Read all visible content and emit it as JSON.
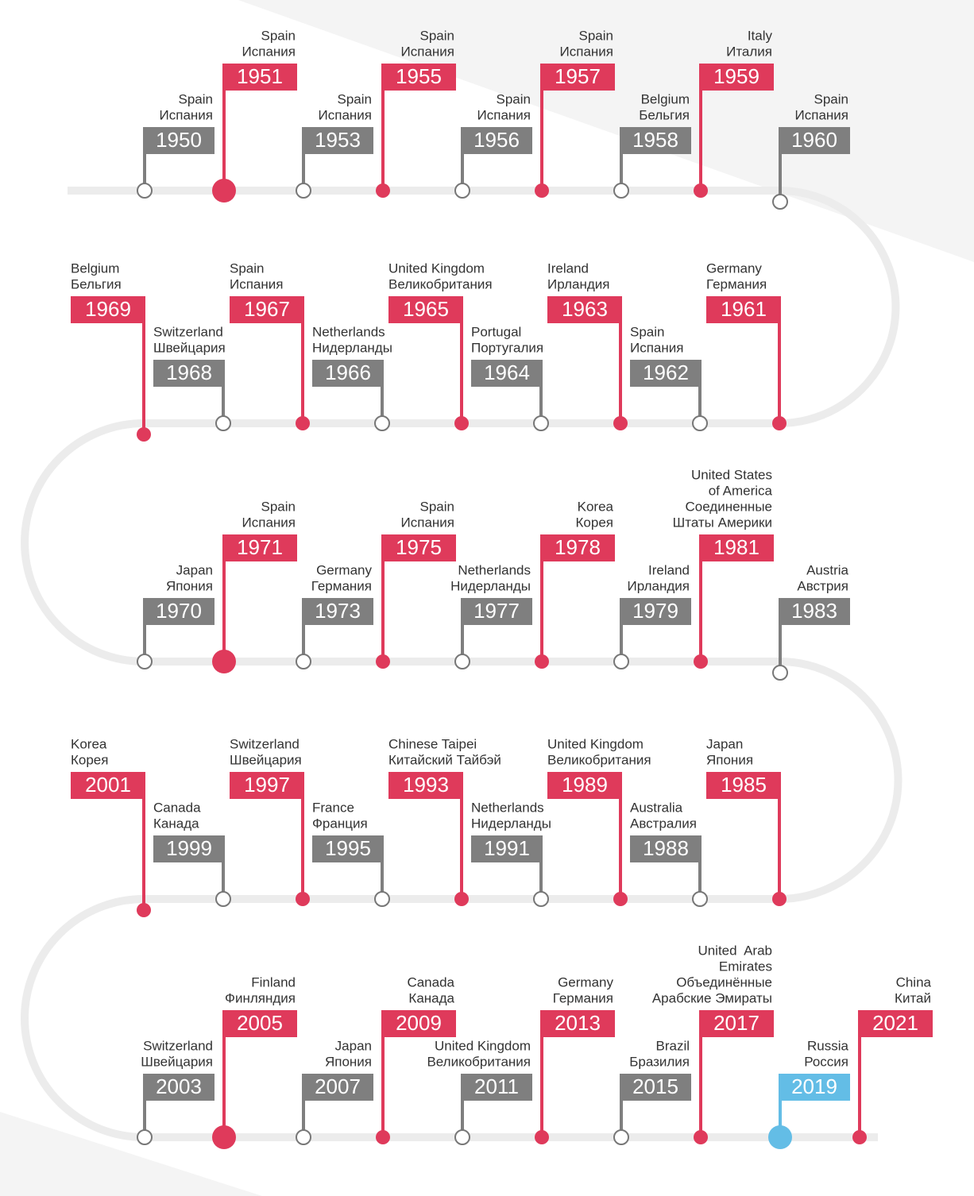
{
  "rows": [
    {
      "items": [
        {
          "year": "1950",
          "label": [
            "Spain",
            "Испания"
          ],
          "color": "gray"
        },
        {
          "year": "1951",
          "label": [
            "Spain",
            "Испания"
          ],
          "color": "red"
        },
        {
          "year": "1953",
          "label": [
            "Spain",
            "Испания"
          ],
          "color": "gray"
        },
        {
          "year": "1955",
          "label": [
            "Spain",
            "Испания"
          ],
          "color": "red"
        },
        {
          "year": "1956",
          "label": [
            "Spain",
            "Испания"
          ],
          "color": "gray"
        },
        {
          "year": "1957",
          "label": [
            "Spain",
            "Испания"
          ],
          "color": "red"
        },
        {
          "year": "1958",
          "label": [
            "Belgium",
            "Бельгия"
          ],
          "color": "gray"
        },
        {
          "year": "1959",
          "label": [
            "Italy",
            "Италия"
          ],
          "color": "red"
        },
        {
          "year": "1960",
          "label": [
            "Spain",
            "Испания"
          ],
          "color": "gray"
        }
      ]
    },
    {
      "items": [
        {
          "year": "1961",
          "label": [
            "Germany",
            "Германия"
          ],
          "color": "red"
        },
        {
          "year": "1962",
          "label": [
            "Spain",
            "Испания"
          ],
          "color": "gray"
        },
        {
          "year": "1963",
          "label": [
            "Ireland",
            "Ирландия"
          ],
          "color": "red"
        },
        {
          "year": "1964",
          "label": [
            "Portugal",
            "Португалия"
          ],
          "color": "gray"
        },
        {
          "year": "1965",
          "label": [
            "United Kingdom",
            "Великобритания"
          ],
          "color": "red"
        },
        {
          "year": "1966",
          "label": [
            "Netherlands",
            "Нидерланды"
          ],
          "color": "gray"
        },
        {
          "year": "1967",
          "label": [
            "Spain",
            "Испания"
          ],
          "color": "red"
        },
        {
          "year": "1968",
          "label": [
            "Switzerland",
            "Швейцария"
          ],
          "color": "gray"
        },
        {
          "year": "1969",
          "label": [
            "Belgium",
            "Бельгия"
          ],
          "color": "red"
        }
      ]
    },
    {
      "items": [
        {
          "year": "1970",
          "label": [
            "Japan",
            "Япония"
          ],
          "color": "gray"
        },
        {
          "year": "1971",
          "label": [
            "Spain",
            "Испания"
          ],
          "color": "red"
        },
        {
          "year": "1973",
          "label": [
            "Germany",
            "Германия"
          ],
          "color": "gray"
        },
        {
          "year": "1975",
          "label": [
            "Spain",
            "Испания"
          ],
          "color": "red"
        },
        {
          "year": "1977",
          "label": [
            "Netherlands",
            "Нидерланды"
          ],
          "color": "gray"
        },
        {
          "year": "1978",
          "label": [
            "Korea",
            "Корея"
          ],
          "color": "red"
        },
        {
          "year": "1979",
          "label": [
            "Ireland",
            "Ирландия"
          ],
          "color": "gray"
        },
        {
          "year": "1981",
          "label": [
            "United States",
            "of America",
            "Соединенные",
            "Штаты Америки"
          ],
          "color": "red"
        },
        {
          "year": "1983",
          "label": [
            "Austria",
            "Австрия"
          ],
          "color": "gray"
        }
      ]
    },
    {
      "items": [
        {
          "year": "1985",
          "label": [
            "Japan",
            "Япония"
          ],
          "color": "red"
        },
        {
          "year": "1988",
          "label": [
            "Australia",
            "Австралия"
          ],
          "color": "gray"
        },
        {
          "year": "1989",
          "label": [
            "United Kingdom",
            "Великобритания"
          ],
          "color": "red"
        },
        {
          "year": "1991",
          "label": [
            "Netherlands",
            "Нидерланды"
          ],
          "color": "gray"
        },
        {
          "year": "1993",
          "label": [
            "Chinese Taipei",
            "Китайский Тайбэй"
          ],
          "color": "red"
        },
        {
          "year": "1995",
          "label": [
            "France",
            "Франция"
          ],
          "color": "gray"
        },
        {
          "year": "1997",
          "label": [
            "Switzerland",
            "Швейцария"
          ],
          "color": "red"
        },
        {
          "year": "1999",
          "label": [
            "Canada",
            "Канада"
          ],
          "color": "gray"
        },
        {
          "year": "2001",
          "label": [
            "Korea",
            "Корея"
          ],
          "color": "red"
        }
      ]
    },
    {
      "items": [
        {
          "year": "2003",
          "label": [
            "Switzerland",
            "Швейцария"
          ],
          "color": "gray"
        },
        {
          "year": "2005",
          "label": [
            "Finland",
            "Финляндия"
          ],
          "color": "red"
        },
        {
          "year": "2007",
          "label": [
            "Japan",
            "Япония"
          ],
          "color": "gray"
        },
        {
          "year": "2009",
          "label": [
            "Canada",
            "Канада"
          ],
          "color": "red"
        },
        {
          "year": "2011",
          "label": [
            "United Kingdom",
            "Великобритания"
          ],
          "color": "gray"
        },
        {
          "year": "2013",
          "label": [
            "Germany",
            "Германия"
          ],
          "color": "red"
        },
        {
          "year": "2015",
          "label": [
            "Brazil",
            "Бразилия"
          ],
          "color": "gray"
        },
        {
          "year": "2017",
          "label": [
            "United  Arab",
            "Emirates",
            "Объединённые",
            "Арабские Эмираты"
          ],
          "color": "red"
        },
        {
          "year": "2019",
          "label": [
            "Russia",
            "Россия"
          ],
          "color": "blue"
        },
        {
          "year": "2021",
          "label": [
            "China",
            "Китай"
          ],
          "color": "red"
        }
      ]
    }
  ]
}
